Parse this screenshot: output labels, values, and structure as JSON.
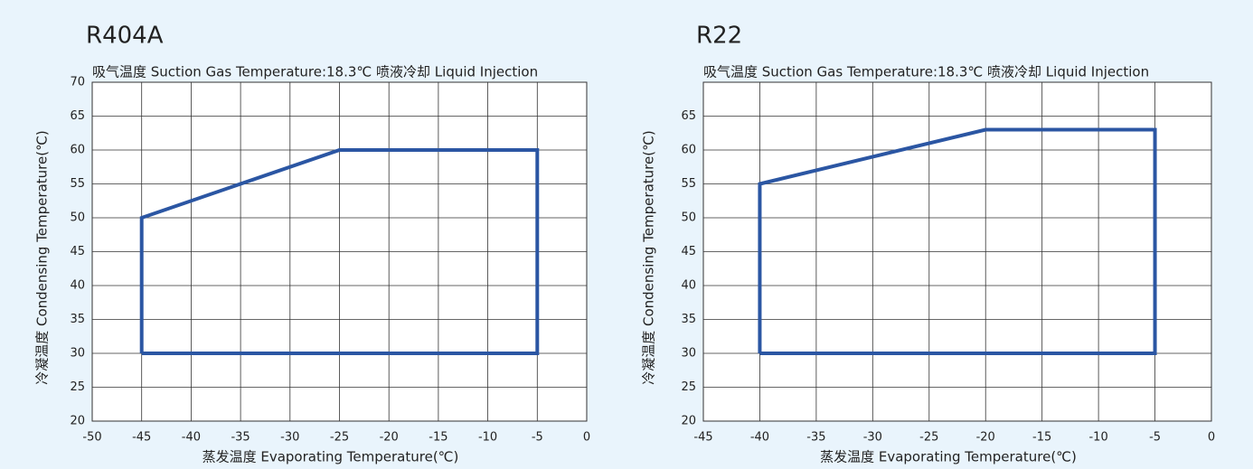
{
  "chart_data": [
    {
      "type": "line",
      "title": "R404A",
      "subtitle": "吸气温度 Suction Gas Temperature:18.3℃  喷液冷却 Liquid Injection",
      "xlabel": "蒸发温度 Evaporating Temperature(℃)",
      "ylabel": "冷凝温度 Condensing Temperature(℃)",
      "x": [
        -45,
        -45,
        -25,
        -5,
        -5,
        -45
      ],
      "values": [
        30,
        50,
        60,
        60,
        30,
        30
      ],
      "color": "#2b56a3",
      "xlim": [
        -50,
        0
      ],
      "xticks": [
        -50,
        -45,
        -40,
        -35,
        -30,
        -25,
        -20,
        -15,
        -10,
        -5,
        0
      ],
      "ylim": [
        20,
        70
      ],
      "yticks": [
        20,
        25,
        30,
        35,
        40,
        45,
        50,
        55,
        60,
        65,
        70
      ],
      "grid": true
    },
    {
      "type": "line",
      "title": "R22",
      "subtitle": "吸气温度 Suction Gas Temperature:18.3℃  喷液冷却 Liquid Injection",
      "xlabel": "蒸发温度 Evaporating Temperature(℃)",
      "ylabel": "冷凝温度 Condensing Temperature(℃)",
      "x": [
        -40,
        -40,
        -20,
        -5,
        -5,
        -40
      ],
      "values": [
        30,
        55,
        63,
        63,
        30,
        30
      ],
      "color": "#2b56a3",
      "xlim": [
        -45,
        0
      ],
      "xticks": [
        -45,
        -40,
        -35,
        -30,
        -25,
        -20,
        -15,
        -10,
        -5,
        0
      ],
      "ylim": [
        20,
        70
      ],
      "yticks": [
        20,
        25,
        30,
        35,
        40,
        45,
        50,
        55,
        60,
        65
      ],
      "grid": true
    }
  ]
}
